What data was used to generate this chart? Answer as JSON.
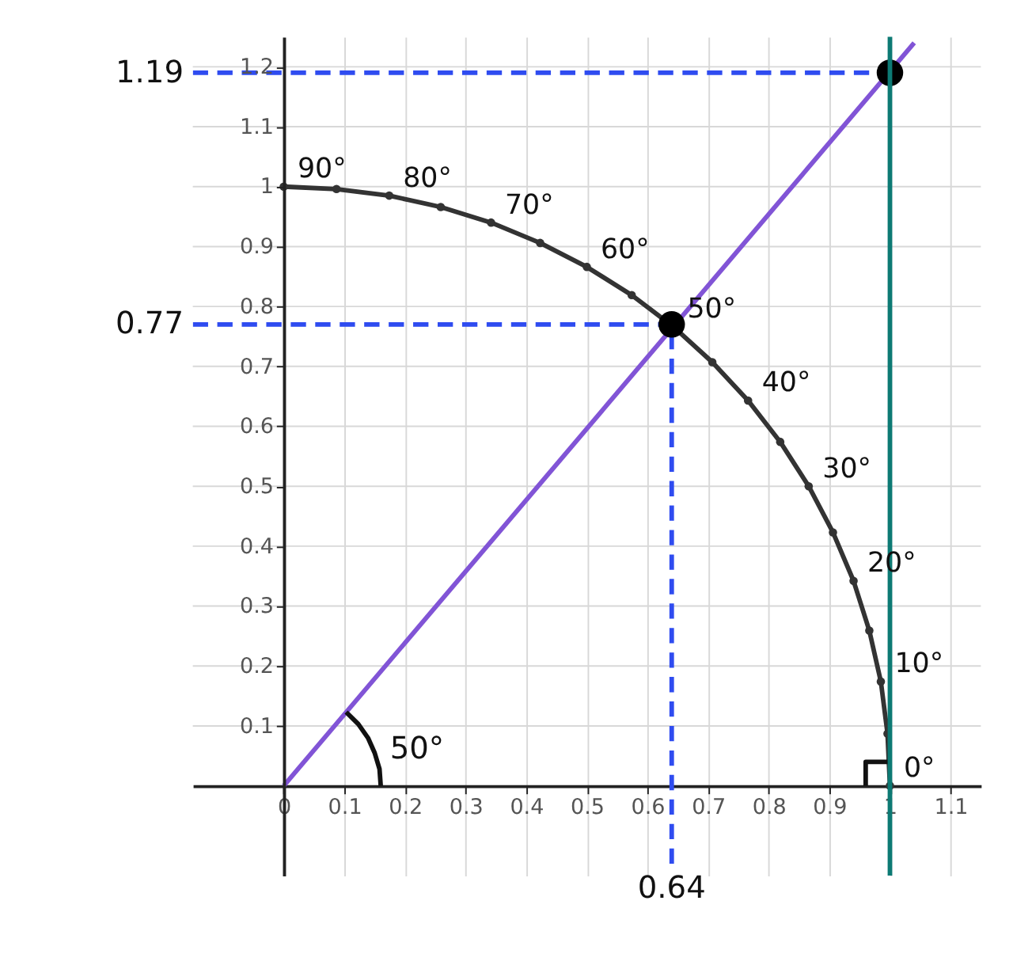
{
  "chart_data": {
    "type": "line",
    "xlim": [
      -0.15,
      1.15
    ],
    "ylim": [
      -0.15,
      1.25
    ],
    "xticks": [
      0,
      0.1,
      0.2,
      0.3,
      0.4,
      0.5,
      0.6,
      0.7,
      0.8,
      0.9,
      1,
      1.1
    ],
    "yticks": [
      0.1,
      0.2,
      0.3,
      0.4,
      0.5,
      0.6,
      0.7,
      0.8,
      0.9,
      1,
      1.1,
      1.2
    ],
    "grid": true,
    "series": [
      {
        "color": "#333333",
        "marker": "circle",
        "line_style": "solid",
        "x": [
          1,
          0.996,
          0.985,
          0.966,
          0.94,
          0.906,
          0.866,
          0.819,
          0.766,
          0.707,
          0.643,
          0.574,
          0.5,
          0.423,
          0.342,
          0.259,
          0.174,
          0.087,
          0
        ],
        "values": [
          0,
          0.087,
          0.174,
          0.259,
          0.342,
          0.423,
          0.5,
          0.574,
          0.643,
          0.707,
          0.766,
          0.819,
          0.866,
          0.906,
          0.94,
          0.966,
          0.985,
          0.996,
          1
        ]
      },
      {
        "color": "#8154d6",
        "line_style": "solid",
        "x": [
          0,
          1.04
        ],
        "values": [
          0,
          1.24
        ]
      },
      {
        "name": "1.19",
        "color": "#2f4cf0",
        "line_style": "dashed",
        "x": [
          -0.15,
          1
        ],
        "values": [
          1.19,
          1.19
        ]
      },
      {
        "name": "0.77",
        "color": "#2f4cf0",
        "line_style": "dashed",
        "x": [
          -0.15,
          0.64
        ],
        "values": [
          0.77,
          0.77
        ]
      },
      {
        "name": "0.64",
        "color": "#2f4cf0",
        "line_style": "dashed",
        "x": [
          0.64,
          0.64
        ],
        "values": [
          -0.13,
          0.77
        ]
      },
      {
        "name": "50°",
        "color": "#111111",
        "line_style": "solid",
        "x": [
          0.16,
          0.158,
          0.15,
          0.139,
          0.123,
          0.103
        ],
        "values": [
          0,
          0.028,
          0.055,
          0.08,
          0.103,
          0.123
        ]
      },
      {
        "color": "#111111",
        "line_style": "solid",
        "x": [
          0.96,
          0.96,
          1
        ],
        "values": [
          0,
          0.04,
          0.04
        ]
      },
      {
        "type": "scatter",
        "color": "#000000",
        "marker": "circle",
        "x": [
          0.64,
          1
        ],
        "values": [
          0.77,
          1.19
        ]
      }
    ],
    "ref_lines": [
      {
        "axis": "x",
        "value": 1,
        "color": "#0d7a74"
      }
    ],
    "annotations": [
      {
        "text": "90°",
        "x": 0,
        "y": 1
      },
      {
        "text": "80°",
        "x": 0.174,
        "y": 0.985
      },
      {
        "text": "70°",
        "x": 0.342,
        "y": 0.94
      },
      {
        "text": "60°",
        "x": 0.5,
        "y": 0.866
      },
      {
        "text": "50°",
        "x": 0.643,
        "y": 0.766
      },
      {
        "text": "40°",
        "x": 0.766,
        "y": 0.643
      },
      {
        "text": "30°",
        "x": 0.866,
        "y": 0.5
      },
      {
        "text": "20°",
        "x": 0.94,
        "y": 0.342
      },
      {
        "text": "10°",
        "x": 0.985,
        "y": 0.174
      },
      {
        "text": "0°",
        "x": 1,
        "y": 0
      }
    ]
  }
}
